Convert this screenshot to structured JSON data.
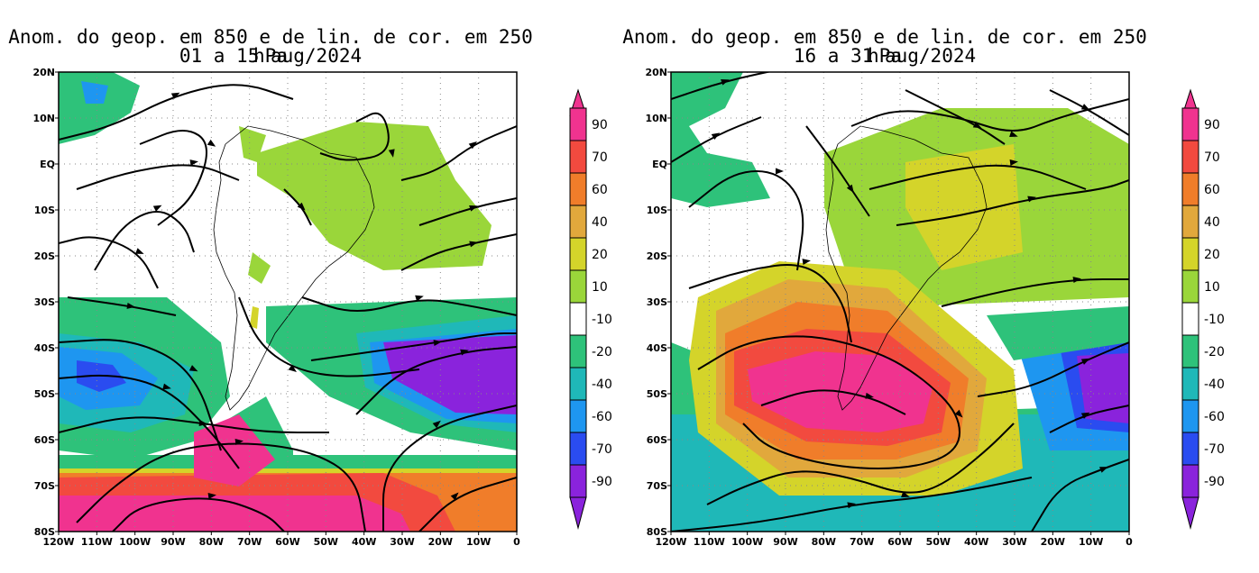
{
  "maps": [
    {
      "id": "left",
      "title_line1": "Anom. do geop. em 850 e de lin. de cor. em 250 hPa",
      "title_line2": "01 a 15 aug/2024"
    },
    {
      "id": "right",
      "title_line1": "Anom. do geop. em 850 e de lin. de cor. em 250 hPa",
      "title_line2": "16 a 31 aug/2024"
    }
  ],
  "axes": {
    "lon_labels": [
      "120W",
      "110W",
      "100W",
      "90W",
      "80W",
      "70W",
      "60W",
      "50W",
      "40W",
      "30W",
      "20W",
      "10W",
      "0"
    ],
    "lat_labels": [
      "20N",
      "10N",
      "EQ",
      "10S",
      "20S",
      "30S",
      "40S",
      "50S",
      "60S",
      "70S",
      "80S"
    ]
  },
  "colorbar": {
    "labels": [
      "90",
      "70",
      "60",
      "40",
      "20",
      "10",
      "-10",
      "-20",
      "-40",
      "-60",
      "-70",
      "-90"
    ],
    "colors": [
      "#f0338f",
      "#f24a3f",
      "#f07d2a",
      "#e1a83c",
      "#d4d42a",
      "#9ad63a",
      "#ffffff",
      "#2ec27a",
      "#1fb8b8",
      "#1e96f0",
      "#2a4cf0",
      "#8a23dc",
      "#8a23dc"
    ]
  },
  "palette": {
    "pink": "#f0338f",
    "red": "#f24a3f",
    "orange": "#f07d2a",
    "lightorange": "#e1a83c",
    "yellow": "#d4d42a",
    "lime": "#9ad63a",
    "white": "#ffffff",
    "green": "#2ec27a",
    "teal": "#1fb8b8",
    "lightblue": "#1e96f0",
    "blue": "#2a4cf0",
    "purple": "#8a23dc"
  }
}
